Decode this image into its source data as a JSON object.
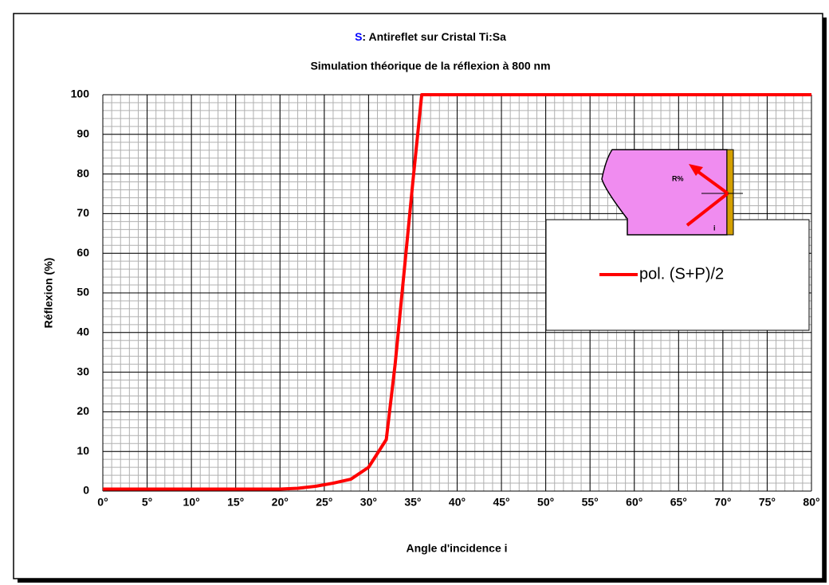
{
  "chart_data": {
    "type": "line",
    "title_parts": [
      "S",
      ": Antireflet sur Cristal Ti:Sa"
    ],
    "subtitle": "Simulation théorique de la réflexion à 800 nm",
    "x_label": "Angle d'incidence i",
    "y_label": "Réflexion (%)",
    "x": [
      0,
      2,
      4,
      6,
      8,
      10,
      12,
      14,
      16,
      18,
      20,
      22,
      24,
      26,
      28,
      30,
      32,
      33,
      34,
      35,
      36,
      40,
      50,
      60,
      70,
      80
    ],
    "series": [
      {
        "name": "pol. (S+P)/2",
        "color": "#ff0000",
        "values": [
          0.5,
          0.5,
          0.5,
          0.5,
          0.5,
          0.5,
          0.5,
          0.5,
          0.5,
          0.5,
          0.5,
          0.7,
          1.2,
          2,
          3,
          6,
          13,
          32,
          55,
          78,
          100,
          100,
          100,
          100,
          100,
          100
        ]
      }
    ],
    "xlim": [
      0,
      80
    ],
    "ylim": [
      0,
      100
    ],
    "xticks": [
      {
        "value": 0,
        "label": "0°"
      },
      {
        "value": 5,
        "label": "5°"
      },
      {
        "value": 10,
        "label": "10°"
      },
      {
        "value": 15,
        "label": "15°"
      },
      {
        "value": 20,
        "label": "20°"
      },
      {
        "value": 25,
        "label": "25°"
      },
      {
        "value": 30,
        "label": "30°"
      },
      {
        "value": 35,
        "label": "35°"
      },
      {
        "value": 40,
        "label": "40°"
      },
      {
        "value": 45,
        "label": "45°"
      },
      {
        "value": 50,
        "label": "50°"
      },
      {
        "value": 55,
        "label": "55°"
      },
      {
        "value": 60,
        "label": "60°"
      },
      {
        "value": 65,
        "label": "65°"
      },
      {
        "value": 70,
        "label": "70°"
      },
      {
        "value": 75,
        "label": "75°"
      },
      {
        "value": 80,
        "label": "80°"
      }
    ],
    "yticks": [
      0,
      10,
      20,
      30,
      40,
      50,
      60,
      70,
      80,
      90,
      100
    ],
    "x_minor_step": 1,
    "y_minor_step": 2,
    "grid": true,
    "inset": {
      "reflect_label": "R%",
      "angle_label": "i"
    }
  }
}
